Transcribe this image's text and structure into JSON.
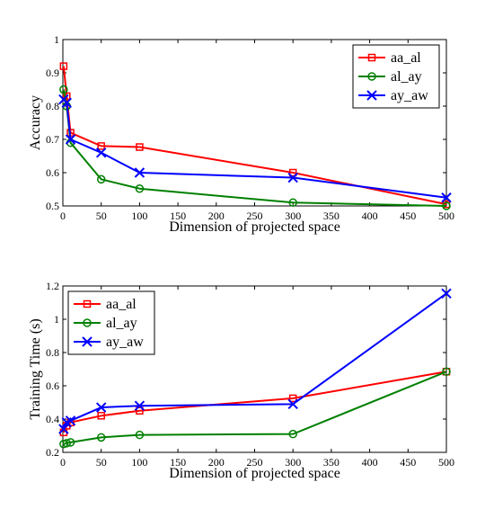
{
  "chart_data": [
    {
      "type": "line",
      "xlabel": "Dimension of projected space",
      "ylabel": "Accuracy",
      "xlim": [
        0,
        500
      ],
      "ylim": [
        0.5,
        1
      ],
      "xticks": [
        0,
        50,
        100,
        150,
        200,
        250,
        300,
        350,
        400,
        450,
        500
      ],
      "yticks": [
        0.5,
        0.6,
        0.7,
        0.8,
        0.9,
        1
      ],
      "ytick_labels": [
        "0.5",
        "0.6",
        "0.7",
        "0.8",
        "0.9",
        "1"
      ],
      "legend_position": "top-right",
      "x": [
        1,
        5,
        10,
        50,
        100,
        300,
        500
      ],
      "series": [
        {
          "name": "aa_al",
          "color": "#ff0000",
          "marker": "square",
          "values": [
            0.92,
            0.83,
            0.72,
            0.68,
            0.677,
            0.6,
            0.505
          ]
        },
        {
          "name": "al_ay",
          "color": "#008000",
          "marker": "circle",
          "values": [
            0.85,
            0.8,
            0.69,
            0.58,
            0.552,
            0.51,
            0.5
          ]
        },
        {
          "name": "ay_aw",
          "color": "#0000ff",
          "marker": "x",
          "values": [
            0.82,
            0.81,
            0.7,
            0.66,
            0.6,
            0.585,
            0.525
          ]
        }
      ]
    },
    {
      "type": "line",
      "xlabel": "Dimension of projected space",
      "ylabel": "Training Time (s)",
      "xlim": [
        0,
        500
      ],
      "ylim": [
        0.2,
        1.2
      ],
      "xticks": [
        0,
        50,
        100,
        150,
        200,
        250,
        300,
        350,
        400,
        450,
        500
      ],
      "yticks": [
        0.2,
        0.4,
        0.6,
        0.8,
        1,
        1.2
      ],
      "ytick_labels": [
        "0.2",
        "0.4",
        "0.6",
        "0.8",
        "1",
        "1.2"
      ],
      "legend_position": "top-left",
      "x": [
        1,
        5,
        10,
        50,
        100,
        300,
        500
      ],
      "series": [
        {
          "name": "aa_al",
          "color": "#ff0000",
          "marker": "square",
          "values": [
            0.32,
            0.36,
            0.38,
            0.42,
            0.45,
            0.525,
            0.685
          ]
        },
        {
          "name": "al_ay",
          "color": "#008000",
          "marker": "circle",
          "values": [
            0.25,
            0.255,
            0.26,
            0.29,
            0.305,
            0.31,
            0.685
          ]
        },
        {
          "name": "ay_aw",
          "color": "#0000ff",
          "marker": "x",
          "values": [
            0.34,
            0.38,
            0.39,
            0.47,
            0.48,
            0.49,
            1.155
          ]
        }
      ]
    }
  ]
}
